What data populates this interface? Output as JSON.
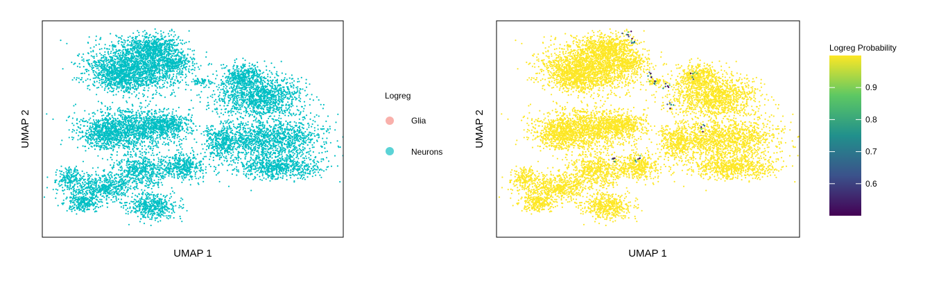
{
  "chart_data": [
    {
      "type": "scatter",
      "xlabel": "UMAP 1",
      "ylabel": "UMAP 2",
      "legend": {
        "title": "Logreg",
        "placement": "right",
        "entries": [
          {
            "label": "Glia",
            "color": "#F8A29C"
          },
          {
            "label": "Neurons",
            "color": "#00BFC4"
          }
        ]
      },
      "grid": false,
      "axis_ticks": false,
      "color_by": "Logreg",
      "series": [
        {
          "name": "Neurons",
          "color": "#00BFC4",
          "note_fraction": 1.0
        }
      ]
    },
    {
      "type": "scatter",
      "xlabel": "UMAP 1",
      "ylabel": "UMAP 2",
      "grid": false,
      "axis_ticks": false,
      "color_by": "Logreg Probability",
      "colorbar": {
        "title": "Logreg Probability",
        "placement": "right",
        "ticks": [
          0.6,
          0.7,
          0.8,
          0.9
        ],
        "tick_labels": [
          "0.6",
          "0.7",
          "0.8",
          "0.9"
        ],
        "range": [
          0.5,
          1.0
        ],
        "colormap": [
          "#440154",
          "#3B528B",
          "#21908C",
          "#5DC863",
          "#FDE725"
        ]
      }
    }
  ]
}
